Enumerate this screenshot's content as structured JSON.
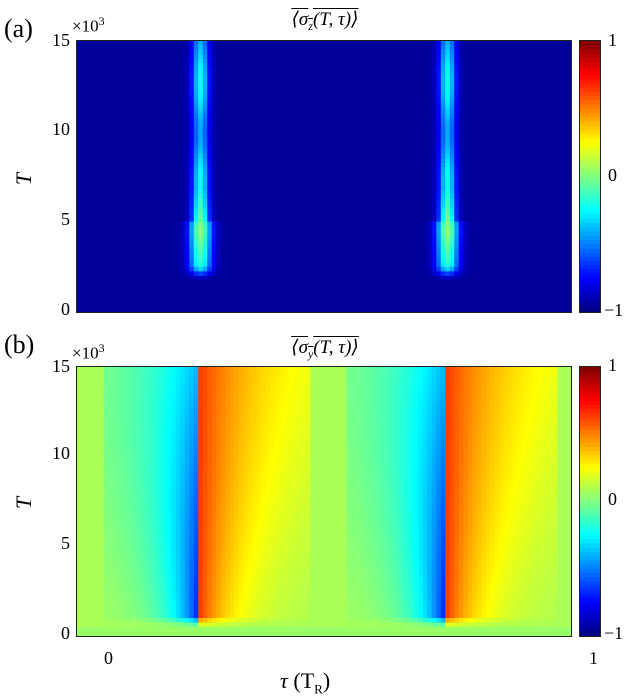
{
  "chart_data": [
    {
      "type": "heatmap",
      "panel_label": "(a)",
      "title": "⟨σz(T, τ)⟩",
      "title_var": "σ",
      "title_sub": "z",
      "title_rest": "(T, τ)⟩",
      "y_multiplier": "×10³",
      "ylabel": "T",
      "yticks": [
        "0",
        "5",
        "10",
        "15"
      ],
      "ylim": [
        0,
        15000
      ],
      "xlim": [
        0,
        1
      ],
      "colorbar_ticks": [
        "1",
        "0",
        "−1"
      ],
      "colorbar_range": [
        -1,
        1
      ],
      "colormap": "jet",
      "description_data": {
        "background_value": -0.95,
        "peak_positions_tau": [
          0.25,
          0.75
        ],
        "peak_onset_T": 2000,
        "peak_max_T": 4500,
        "peak_max_value": 0.0
      }
    },
    {
      "type": "heatmap",
      "panel_label": "(b)",
      "title": "⟨σy(T, τ)⟩",
      "y_multiplier": "×10³",
      "ylabel": "T",
      "yticks": [
        "0",
        "5",
        "10",
        "15"
      ],
      "ylim": [
        0,
        15000
      ],
      "xlim": [
        0,
        1
      ],
      "xticks": [
        "0",
        "1"
      ],
      "xlabel": "τ (TR)",
      "colorbar_ticks": [
        "1",
        "0",
        "−1"
      ],
      "colorbar_range": [
        -1,
        1
      ],
      "colormap": "jet",
      "description_data": {
        "background_value": 0.05,
        "min_value": -0.95,
        "max_value": 0.65,
        "transition_tau": [
          0.25,
          0.75
        ],
        "onset_T": 500
      }
    }
  ],
  "labels": {
    "a": "(a)",
    "b": "(b)",
    "mult": "×10",
    "mult_exp": "3",
    "y0": "0",
    "y5": "5",
    "y10": "10",
    "y15": "15",
    "cb_top": "1",
    "cb_mid": "0",
    "cb_bot": "−1",
    "x0": "0",
    "x1": "1",
    "ylabel": "T",
    "title_a_pre": "⟨σ",
    "title_a_sub": "z",
    "title_a_post": "(T, τ)⟩",
    "title_b_pre": "⟨σ",
    "title_b_sub": "y",
    "title_b_post": "(T, τ)⟩",
    "xlabel_tau": "τ",
    "xlabel_open": " (T",
    "xlabel_sub": "R",
    "xlabel_close": ")"
  }
}
